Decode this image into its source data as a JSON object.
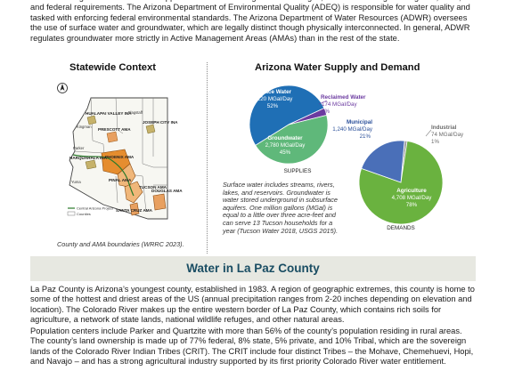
{
  "intro": {
    "text": "water challenges and take different approaches to addressing those challenges, while conforming with regional, state, and federal requirements. The Arizona Department of Environmental Quality (ADEQ) is responsible for water quality and tasked with enforcing federal environmental standards. The Arizona Department of Water Resources (ADWR) oversees the use of surface water and groundwater, which are legally distinct though physically interconnected. In general, ADWR regulates groundwater more strictly in Active Management Areas (AMAs) than in the rest of the state."
  },
  "statewide": {
    "title": "Statewide Context",
    "caption": "County and AMA boundaries (WRRC 2023).",
    "map_labels": {
      "hualapai": "HUALAPAI VALLEY INA",
      "prescott": "PRESCOTT AMA",
      "joseph": "JOSEPH CITY INA",
      "harquahala": "HARQUAHALA INA",
      "phoenix": "PHOENIX AMA",
      "pinal": "PINAL AMA",
      "tucson": "TUCSON AMA",
      "santacruz": "SANTA CRUZ AMA",
      "douglas": "DOUGLAS AMA",
      "flagstaff": "Flagstaff",
      "kingman": "Kingman",
      "yuma": "Yuma",
      "parker": "Parker"
    },
    "legend": {
      "cap": "Central Arizona Project",
      "counties": "Counties"
    }
  },
  "water": {
    "title": "Arizona Water Supply and Demand",
    "colors": {
      "surface": "#1f6fb5",
      "ground": "#5fb87a",
      "reclaimed": "#6b3aa0",
      "municipal": "#4a6fb8",
      "industrial": "#9a9a9a",
      "agriculture": "#6ab23f"
    },
    "supplies_label": "SUPPLIES",
    "demands_label": "DEMANDS",
    "explanation": "Surface water includes streams, rivers, lakes, and reservoirs. Groundwater is water stored underground in subsurface aquifers. One million gallons (MGal) is equal to a little over three acre-feet and can serve 13 Tucson households for a year (Tucson Water 2018, USGS 2015).",
    "supplies": {
      "surface": {
        "name": "Surface Water",
        "value": "3,220 MGal/Day",
        "pct": "52%",
        "share": 52
      },
      "ground": {
        "name": "Groundwater",
        "value": "2,780 MGal/Day",
        "pct": "45%",
        "share": 45
      },
      "reclaimed": {
        "name": "Reclaimed Water",
        "value": "174 MGal/Day",
        "pct": "3%",
        "share": 3
      }
    },
    "demands": {
      "municipal": {
        "name": "Municipal",
        "value": "1,240 MGal/Day",
        "pct": "21%",
        "share": 21
      },
      "industrial": {
        "name": "Industrial",
        "value": "74 MGal/Day",
        "pct": "1%",
        "share": 1
      },
      "agriculture": {
        "name": "Agriculture",
        "value": "4,708 MGal/Day",
        "pct": "78%",
        "share": 78
      }
    }
  },
  "lapaz": {
    "title": "Water in La Paz County",
    "p1": "La Paz County is Arizona’s youngest county, established in 1983. A region of geographic extremes, this county is home to some of the hottest and driest areas of the US (annual precipitation ranges from 2-20 inches depending on elevation and location). The Colorado River makes up the entire western border of La Paz County, which contains rich soils for agriculture, a network of state lands, national wildlife refuges, and other natural areas.",
    "p2": "Population centers include Parker and Quartzite with more than 56% of the county’s population residing in rural areas. The county’s land ownership is made up of 77% federal, 8% state, 5% private, and 10% Tribal, which are the sovereign lands of the Colorado River Indian Tribes (CRIT). The CRIT include four distinct Tribes – the Mohave, Chemehuevi, Hopi, and Navajo – and has a strong agricultural industry supported by its first priority Colorado River water entitlement."
  }
}
